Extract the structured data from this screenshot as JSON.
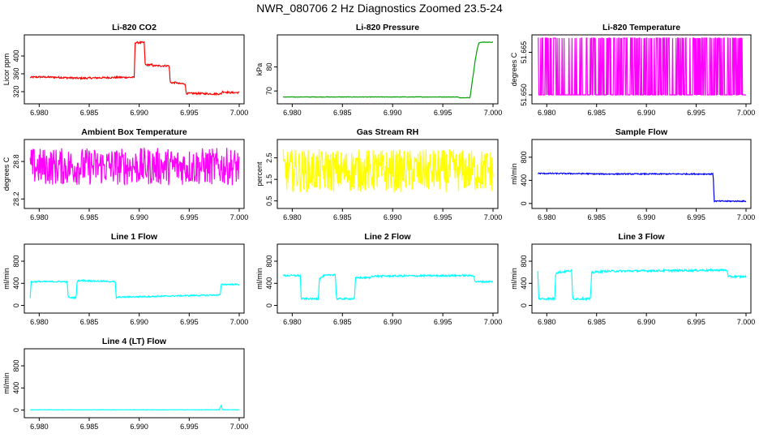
{
  "title": "NWR_080706  2 Hz Diagnostics Zoomed 23.5-24",
  "chart_data": [
    {
      "type": "line",
      "title": "Li-820 CO2",
      "ylabel": "Licor ppm",
      "color": "#ff0000",
      "xlim": [
        6.979,
        7.0
      ],
      "ylim": [
        300,
        440
      ],
      "xticks": [
        6.98,
        6.985,
        6.99,
        6.995,
        7.0
      ],
      "xticklabels": [
        "6.980",
        "6.985",
        "6.990",
        "6.995",
        "7.000"
      ],
      "yticks": [
        320,
        360,
        400
      ],
      "yticklabels": [
        "320",
        "360",
        "400"
      ],
      "series": [
        {
          "x": [
            6.9791,
            6.98,
            6.982,
            6.984,
            6.986,
            6.988,
            6.9895,
            6.9896,
            6.9905,
            6.9906,
            6.9913,
            6.9914,
            6.993,
            6.9931,
            6.9938,
            6.9939,
            6.9946,
            6.9947,
            6.996,
            6.9975,
            6.9982,
            6.9983,
            6.999,
            7.0
          ],
          "y": [
            352,
            353,
            352,
            350,
            351,
            352,
            352,
            430,
            430,
            380,
            380,
            378,
            378,
            340,
            340,
            338,
            338,
            316,
            316,
            315,
            315,
            320,
            318,
            318
          ],
          "noise": 2
        }
      ]
    },
    {
      "type": "line",
      "title": "Li-820 Pressure",
      "ylabel": "kPa",
      "color": "#00a000",
      "xlim": [
        6.979,
        7.0
      ],
      "ylim": [
        66,
        92
      ],
      "xticks": [
        6.98,
        6.985,
        6.99,
        6.995,
        7.0
      ],
      "xticklabels": [
        "6.980",
        "6.985",
        "6.990",
        "6.995",
        "7.000"
      ],
      "yticks": [
        70,
        80
      ],
      "yticklabels": [
        "70",
        "80"
      ],
      "series": [
        {
          "x": [
            6.9791,
            6.9965,
            6.9966,
            6.9977,
            6.9978,
            6.998,
            6.9982,
            6.9984,
            6.9986,
            6.9988,
            7.0
          ],
          "y": [
            67.5,
            67.5,
            67.2,
            67.2,
            70,
            76,
            82,
            87,
            90,
            90.3,
            90.3
          ],
          "noise": 0.1
        }
      ]
    },
    {
      "type": "line",
      "title": "Li-820 Temperature",
      "ylabel": "degrees C",
      "color": "#ff00ff",
      "xlim": [
        6.979,
        7.0
      ],
      "ylim": [
        51.648,
        51.67
      ],
      "xticks": [
        6.98,
        6.985,
        6.99,
        6.995,
        7.0
      ],
      "xticklabels": [
        "6.980",
        "6.985",
        "6.990",
        "6.995",
        "7.000"
      ],
      "yticks": [
        51.65,
        51.665
      ],
      "yticklabels": [
        "51.650",
        "51.665"
      ],
      "series": [
        {
          "x": [
            6.9791,
            7.0
          ],
          "y": [
            51.65,
            51.65
          ],
          "spikes_to": 51.67,
          "spike_density": 0.35,
          "noise": 0
        }
      ]
    },
    {
      "type": "line",
      "title": "Ambient Box Temperature",
      "ylabel": "degrees C",
      "color": "#ff00ff",
      "xlim": [
        6.979,
        7.0
      ],
      "ylim": [
        28.1,
        29.1
      ],
      "xticks": [
        6.98,
        6.985,
        6.99,
        6.995,
        7.0
      ],
      "xticklabels": [
        "6.980",
        "6.985",
        "6.990",
        "6.995",
        "7.000"
      ],
      "yticks": [
        28.2,
        28.8
      ],
      "yticklabels": [
        "28.2",
        "28.8"
      ],
      "series": [
        {
          "x": [
            6.9791,
            7.0
          ],
          "y": [
            28.72,
            28.72
          ],
          "noise": 0.3
        }
      ]
    },
    {
      "type": "line",
      "title": "Gas Stream RH",
      "ylabel": "percent",
      "color": "#ffff00",
      "xlim": [
        6.979,
        7.0
      ],
      "ylim": [
        0.3,
        3.2
      ],
      "xticks": [
        6.98,
        6.985,
        6.99,
        6.995,
        7.0
      ],
      "xticklabels": [
        "6.980",
        "6.985",
        "6.990",
        "6.995",
        "7.000"
      ],
      "yticks": [
        0.5,
        1.5,
        2.5
      ],
      "yticklabels": [
        "0.5",
        "1.5",
        "2.5"
      ],
      "series": [
        {
          "x": [
            6.9791,
            7.0
          ],
          "y": [
            1.9,
            1.9
          ],
          "noise": 1.0
        }
      ]
    },
    {
      "type": "line",
      "title": "Sample Flow",
      "ylabel": "ml/min",
      "color": "#0000ff",
      "xlim": [
        6.979,
        7.0
      ],
      "ylim": [
        -30,
        1050
      ],
      "xticks": [
        6.98,
        6.985,
        6.99,
        6.995,
        7.0
      ],
      "xticklabels": [
        "6.980",
        "6.985",
        "6.990",
        "6.995",
        "7.000"
      ],
      "yticks": [
        0,
        400,
        800
      ],
      "yticklabels": [
        "0",
        "400",
        "800"
      ],
      "series": [
        {
          "x": [
            6.9791,
            6.984,
            6.985,
            6.9966,
            6.9967,
            6.9968,
            7.0
          ],
          "y": [
            520,
            515,
            510,
            510,
            510,
            40,
            40
          ],
          "noise": 10
        }
      ]
    },
    {
      "type": "line",
      "title": "Line 1 Flow",
      "ylabel": "ml/min",
      "color": "#00ffff",
      "xlim": [
        6.979,
        7.0
      ],
      "ylim": [
        -80,
        1050
      ],
      "xticks": [
        6.98,
        6.985,
        6.99,
        6.995,
        7.0
      ],
      "xticklabels": [
        "6.980",
        "6.985",
        "6.990",
        "6.995",
        "7.000"
      ],
      "yticks": [
        0,
        400,
        800
      ],
      "yticklabels": [
        "0",
        "400",
        "800"
      ],
      "series": [
        {
          "x": [
            6.9791,
            6.9792,
            6.9828,
            6.9829,
            6.9837,
            6.9838,
            6.9876,
            6.9877,
            6.988,
            6.9981,
            6.9982,
            6.9985,
            7.0
          ],
          "y": [
            140,
            430,
            430,
            140,
            140,
            450,
            430,
            140,
            150,
            190,
            380,
            380,
            380
          ],
          "noise": 12
        }
      ]
    },
    {
      "type": "line",
      "title": "Line 2 Flow",
      "ylabel": "ml/min",
      "color": "#00ffff",
      "xlim": [
        6.979,
        7.0
      ],
      "ylim": [
        -80,
        1050
      ],
      "xticks": [
        6.98,
        6.985,
        6.99,
        6.995,
        7.0
      ],
      "xticklabels": [
        "6.980",
        "6.985",
        "6.990",
        "6.995",
        "7.000"
      ],
      "yticks": [
        0,
        400,
        800
      ],
      "yticklabels": [
        "0",
        "400",
        "800"
      ],
      "series": [
        {
          "x": [
            6.9791,
            6.9808,
            6.9809,
            6.9826,
            6.9827,
            6.9832,
            6.9843,
            6.9844,
            6.9862,
            6.9863,
            6.9878,
            6.9879,
            6.996,
            6.9981,
            6.9982,
            7.0
          ],
          "y": [
            540,
            540,
            120,
            120,
            480,
            540,
            560,
            120,
            120,
            500,
            500,
            530,
            540,
            540,
            430,
            430
          ],
          "noise": 15
        }
      ]
    },
    {
      "type": "line",
      "title": "Line 3 Flow",
      "ylabel": "ml/min",
      "color": "#00ffff",
      "xlim": [
        6.979,
        7.0
      ],
      "ylim": [
        -80,
        1050
      ],
      "xticks": [
        6.98,
        6.985,
        6.99,
        6.995,
        7.0
      ],
      "xticklabels": [
        "6.980",
        "6.985",
        "6.990",
        "6.995",
        "7.000"
      ],
      "yticks": [
        0,
        400,
        800
      ],
      "yticklabels": [
        "0",
        "400",
        "800"
      ],
      "series": [
        {
          "x": [
            6.9791,
            6.9792,
            6.9808,
            6.9809,
            6.9825,
            6.9826,
            6.9844,
            6.9845,
            6.9862,
            6.9863,
            6.9981,
            6.9982,
            7.0
          ],
          "y": [
            620,
            120,
            120,
            590,
            630,
            120,
            120,
            600,
            620,
            620,
            640,
            520,
            520
          ],
          "noise": 18
        }
      ]
    },
    {
      "type": "line",
      "title": "Line 4 (LT) Flow",
      "ylabel": "ml/min",
      "color": "#00ffff",
      "xlim": [
        6.979,
        7.0
      ],
      "ylim": [
        -80,
        1050
      ],
      "xticks": [
        6.98,
        6.985,
        6.99,
        6.995,
        7.0
      ],
      "xticklabels": [
        "6.980",
        "6.985",
        "6.990",
        "6.995",
        "7.000"
      ],
      "yticks": [
        0,
        400,
        800
      ],
      "yticklabels": [
        "0",
        "400",
        "800"
      ],
      "series": [
        {
          "x": [
            6.9791,
            6.998,
            6.9982,
            6.9983,
            6.9985,
            7.0
          ],
          "y": [
            5,
            5,
            90,
            10,
            5,
            5
          ],
          "noise": 3
        }
      ]
    }
  ]
}
